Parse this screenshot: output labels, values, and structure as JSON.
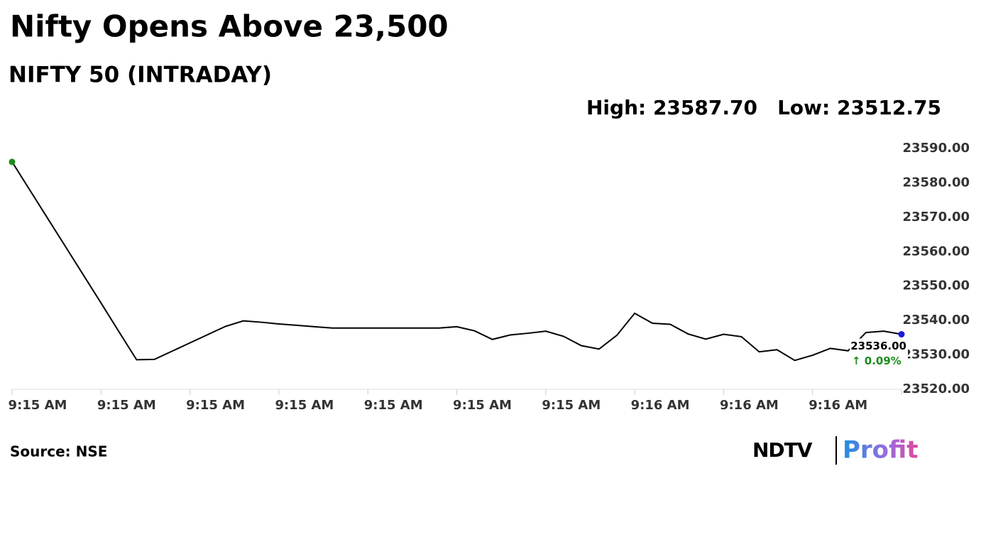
{
  "chart_data": {
    "type": "line",
    "title": "Nifty Opens Above 23,500",
    "subtitle": "NIFTY 50 (INTRADAY)",
    "high": "High: 23587.70",
    "low": "Low: 23512.75",
    "last_value": "23536.00",
    "change": "↑ 0.09%",
    "source": "Source: NSE",
    "logo": [
      "NDTV",
      "Profit"
    ],
    "categories": [
      "9:15 AM",
      null,
      null,
      null,
      null,
      "9:15 AM",
      null,
      null,
      null,
      null,
      "9:15 AM",
      null,
      null,
      null,
      null,
      "9:15 AM",
      null,
      null,
      null,
      null,
      "9:15 AM",
      null,
      null,
      null,
      null,
      "9:15 AM",
      null,
      null,
      null,
      null,
      "9:15 AM",
      null,
      null,
      null,
      null,
      "9:16 AM",
      null,
      null,
      null,
      null,
      "9:16 AM",
      null,
      null,
      null,
      null,
      "9:16 AM",
      null,
      null,
      null,
      null,
      null
    ],
    "series": [
      {
        "name": "NIFTY 50",
        "color": "#000000",
        "values": [
          23586.1,
          23577.9,
          23569.7,
          23561.5,
          23553.3,
          23545.1,
          23536.8,
          23528.6,
          23528.7,
          23531.1,
          23533.5,
          23535.9,
          23538.3,
          23539.9,
          23539.5,
          23539.0,
          23538.6,
          23538.2,
          23537.8,
          23537.8,
          23537.8,
          23537.8,
          23537.8,
          23537.8,
          23537.8,
          23538.2,
          23537.0,
          23534.5,
          23535.8,
          23536.3,
          23536.9,
          23535.4,
          23532.7,
          23531.7,
          23535.7,
          23542.1,
          23539.2,
          23538.9,
          23536.1,
          23534.6,
          23536.0,
          23535.3,
          23530.9,
          23531.5,
          23528.4,
          23529.9,
          23531.9,
          23531.2,
          23536.5,
          23536.9,
          23536.0
        ]
      }
    ],
    "first_color": "#1a8c1a",
    "last_color": "#1a1adb",
    "change_color": "#1a8c1a",
    "ylim": [
      23520,
      23590
    ],
    "yticks": [
      {
        "value": 23520,
        "label": "23520.00"
      },
      {
        "value": 23530,
        "label": "23530.00"
      },
      {
        "value": 23540,
        "label": "23540.00"
      },
      {
        "value": 23550,
        "label": "23550.00"
      },
      {
        "value": 23560,
        "label": "23560.00"
      },
      {
        "value": 23570,
        "label": "23570.00"
      },
      {
        "value": 23580,
        "label": "23580.00"
      },
      {
        "value": 23590,
        "label": "23590.00"
      }
    ],
    "grid": false
  }
}
